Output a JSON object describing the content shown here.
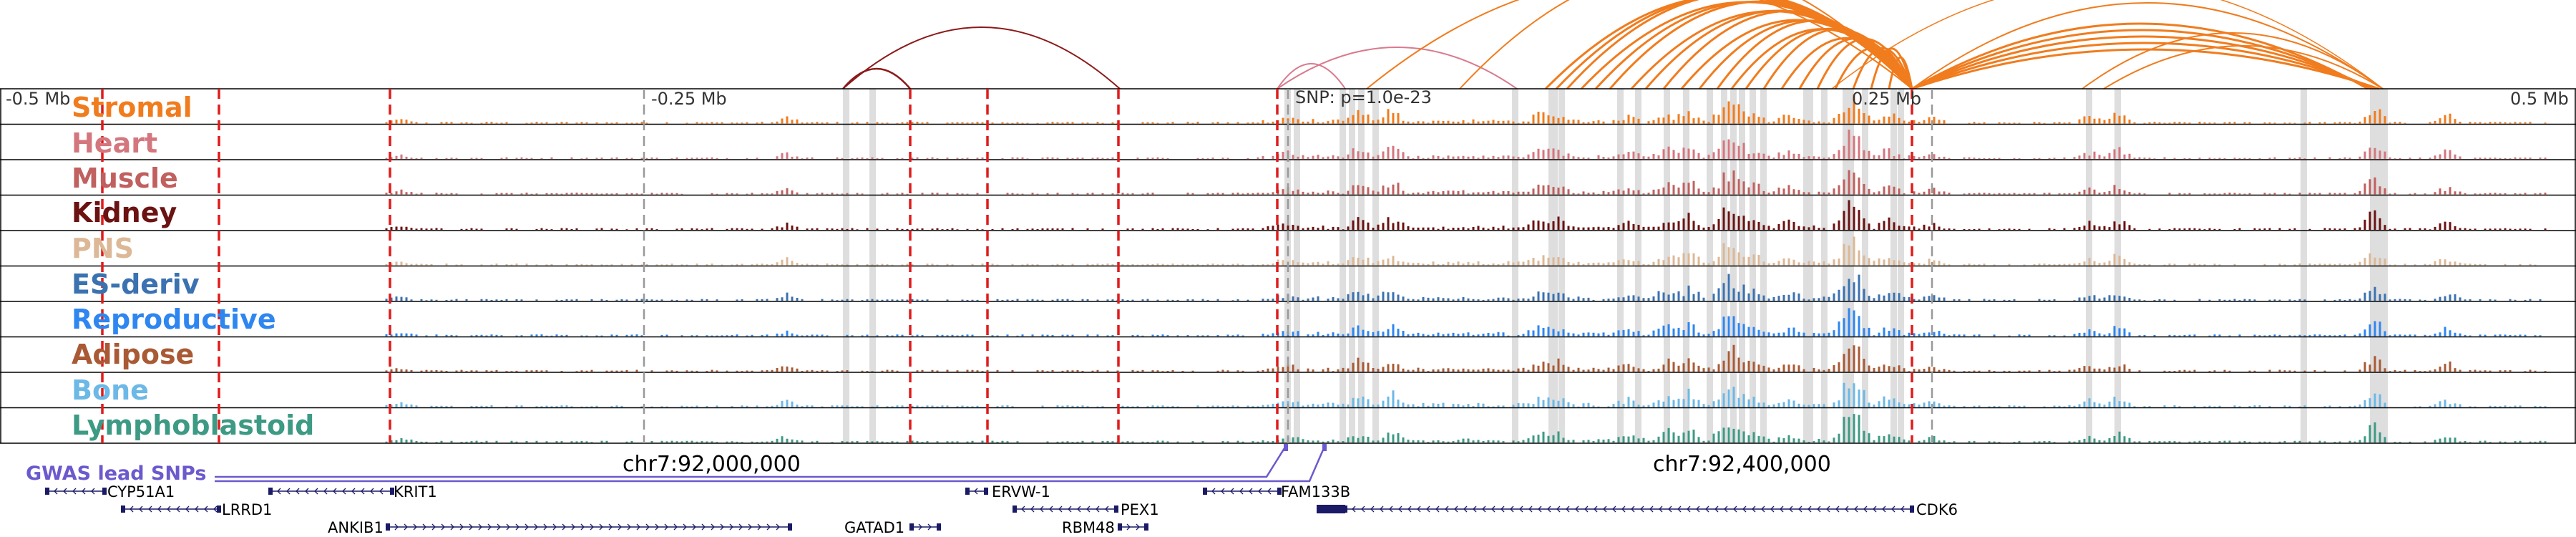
{
  "scale": {
    "left": "-0.5 Mb",
    "mid_left": "-0.25 Mb",
    "snp": "SNP: p=1.0e-23",
    "mid_right": "0.25 Mb",
    "right": "0.5 Mb"
  },
  "tracks": [
    {
      "label": "Stromal",
      "color": "#f07c1e"
    },
    {
      "label": "Heart",
      "color": "#d4767e"
    },
    {
      "label": "Muscle",
      "color": "#c0605f"
    },
    {
      "label": "Kidney",
      "color": "#6b1212"
    },
    {
      "label": "PNS",
      "color": "#dcb896"
    },
    {
      "label": "ES-deriv",
      "color": "#3b72b0"
    },
    {
      "label": "Reproductive",
      "color": "#2e86f0"
    },
    {
      "label": "Adipose",
      "color": "#a95a35"
    },
    {
      "label": "Bone",
      "color": "#6cb8e6"
    },
    {
      "label": "Lymphoblastoid",
      "color": "#3d9a84"
    }
  ],
  "coordinates": [
    "chr7:92,000,000",
    "chr7:92,400,000"
  ],
  "gwas": {
    "title": "GWAS lead SNPs",
    "color": "#6a5acd"
  },
  "genes": [
    "CYP51A1",
    "KRIT1",
    "LRRD1",
    "ANKIB1",
    "GATAD1",
    "ERVW-1",
    "PEX1",
    "RBM48",
    "FAM133B",
    "CDK6"
  ],
  "colors": {
    "gene": "#1a1a66",
    "red_marker": "#e01b1b",
    "gray_marker": "#999999",
    "highlight": "#dedede",
    "arc_dark": "#8b1a1a",
    "arc_pink": "#d97a8e",
    "arc_orange": "#f07c1e"
  }
}
